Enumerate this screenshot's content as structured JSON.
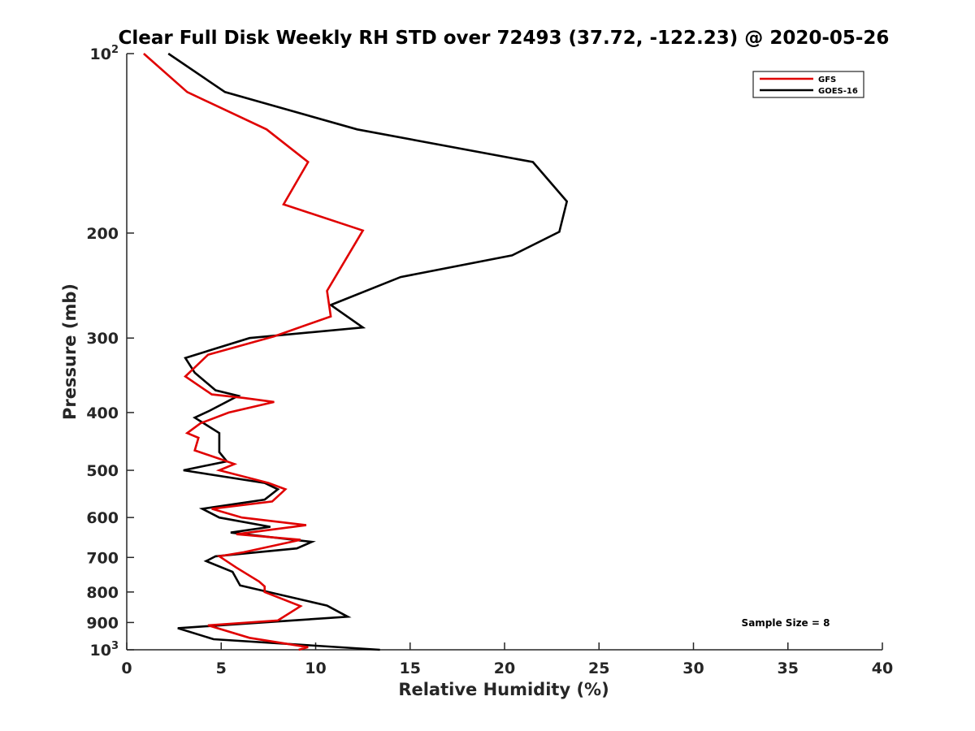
{
  "chart_data": {
    "type": "line",
    "title": "Clear Full Disk Weekly RH STD over 72493 (37.72, -122.23) @ 2020-05-26",
    "xlabel": "Relative Humidity (%)",
    "ylabel": "Pressure (mb)",
    "xlim": [
      0,
      40
    ],
    "ylim": [
      100,
      1000
    ],
    "y_scale": "log",
    "y_reversed": true,
    "grid": false,
    "legend_position": "top-right",
    "x_ticks": [
      "0",
      "5",
      "10",
      "15",
      "20",
      "25",
      "30",
      "35",
      "40"
    ],
    "x_tick_values": [
      0,
      5,
      10,
      15,
      20,
      25,
      30,
      35,
      40
    ],
    "y_ticks": [
      {
        "value": 100,
        "base": "10",
        "exp": "2"
      },
      {
        "value": 200,
        "base": "200",
        "exp": ""
      },
      {
        "value": 300,
        "base": "300",
        "exp": ""
      },
      {
        "value": 400,
        "base": "400",
        "exp": ""
      },
      {
        "value": 500,
        "base": "500",
        "exp": ""
      },
      {
        "value": 600,
        "base": "600",
        "exp": ""
      },
      {
        "value": 700,
        "base": "700",
        "exp": ""
      },
      {
        "value": 800,
        "base": "800",
        "exp": ""
      },
      {
        "value": 900,
        "base": "900",
        "exp": ""
      },
      {
        "value": 1000,
        "base": "10",
        "exp": "3"
      }
    ],
    "annotation": "Sample Size = 8",
    "series": [
      {
        "name": "GFS",
        "color": "#e00000",
        "points": [
          [
            0.9,
            100
          ],
          [
            3.2,
            116
          ],
          [
            7.4,
            134
          ],
          [
            9.6,
            152
          ],
          [
            8.3,
            179
          ],
          [
            12.5,
            198
          ],
          [
            10.6,
            250
          ],
          [
            10.8,
            276
          ],
          [
            7.8,
            298
          ],
          [
            4.3,
            320
          ],
          [
            3.1,
            348
          ],
          [
            4.5,
            373
          ],
          [
            6.2,
            378
          ],
          [
            7.8,
            384
          ],
          [
            5.4,
            400
          ],
          [
            3.9,
            417
          ],
          [
            3.2,
            433
          ],
          [
            3.8,
            441
          ],
          [
            3.6,
            463
          ],
          [
            4.8,
            477
          ],
          [
            5.7,
            488
          ],
          [
            4.9,
            500
          ],
          [
            7.5,
            525
          ],
          [
            8.4,
            538
          ],
          [
            7.7,
            564
          ],
          [
            4.5,
            580
          ],
          [
            6.1,
            600
          ],
          [
            9.5,
            618
          ],
          [
            5.8,
            640
          ],
          [
            9.2,
            654
          ],
          [
            6.2,
            686
          ],
          [
            4.9,
            697
          ],
          [
            5.8,
            728
          ],
          [
            7.0,
            768
          ],
          [
            7.3,
            783
          ],
          [
            7.3,
            800
          ],
          [
            9.2,
            845
          ],
          [
            8.0,
            893
          ],
          [
            4.3,
            910
          ],
          [
            6.5,
            955
          ],
          [
            9.6,
            990
          ],
          [
            9.1,
            1000
          ]
        ]
      },
      {
        "name": "GOES-16",
        "color": "#000000",
        "points": [
          [
            2.2,
            100
          ],
          [
            5.2,
            116
          ],
          [
            12.2,
            134
          ],
          [
            21.5,
            152
          ],
          [
            23.3,
            177
          ],
          [
            22.9,
            199
          ],
          [
            20.4,
            218
          ],
          [
            14.5,
            237
          ],
          [
            10.8,
            264
          ],
          [
            12.5,
            288
          ],
          [
            6.5,
            300
          ],
          [
            3.1,
            324
          ],
          [
            3.6,
            343
          ],
          [
            4.7,
            367
          ],
          [
            5.9,
            375
          ],
          [
            4.4,
            397
          ],
          [
            3.6,
            408
          ],
          [
            4.9,
            433
          ],
          [
            4.9,
            466
          ],
          [
            5.3,
            483
          ],
          [
            3.0,
            500
          ],
          [
            7.3,
            525
          ],
          [
            8.0,
            538
          ],
          [
            7.3,
            560
          ],
          [
            4.0,
            580
          ],
          [
            4.9,
            600
          ],
          [
            7.6,
            622
          ],
          [
            5.5,
            636
          ],
          [
            9.8,
            659
          ],
          [
            9.0,
            676
          ],
          [
            4.7,
            697
          ],
          [
            4.2,
            710
          ],
          [
            5.6,
            740
          ],
          [
            6.0,
            780
          ],
          [
            7.5,
            800
          ],
          [
            10.6,
            843
          ],
          [
            11.7,
            880
          ],
          [
            2.7,
            920
          ],
          [
            4.6,
            960
          ],
          [
            13.4,
            1000
          ]
        ]
      }
    ]
  }
}
